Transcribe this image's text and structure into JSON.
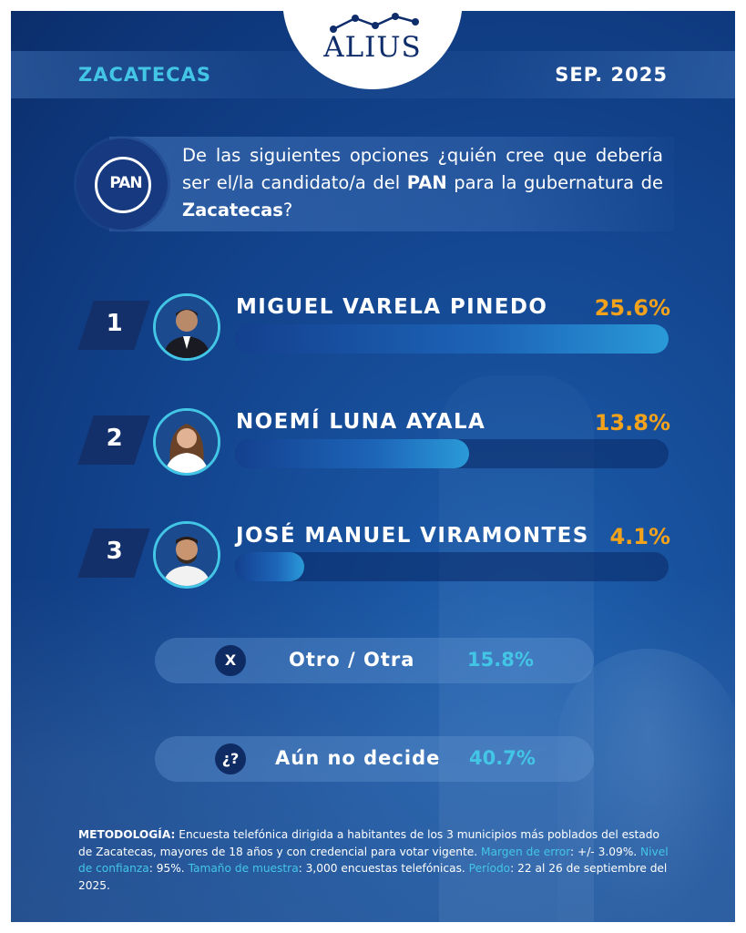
{
  "brand": {
    "name": "ALIUS"
  },
  "header": {
    "state": "ZACATECAS",
    "date": "SEP. 2025"
  },
  "party": {
    "logo_text": "PAN"
  },
  "question": {
    "part1": "De las siguientes opciones ",
    "part2": "¿quién cree que debería ser el/la candidato/a del ",
    "party": "PAN",
    "part3": " para la gubernatura de ",
    "place": "Zacatecas",
    "part4": "?"
  },
  "chart_data": {
    "type": "bar",
    "orientation": "horizontal",
    "categories": [
      "MIGUEL VARELA PINEDO",
      "NOEMÍ LUNA AYALA",
      "JOSÉ MANUEL VIRAMONTES"
    ],
    "ranks": [
      "1",
      "2",
      "3"
    ],
    "values": [
      25.6,
      13.8,
      4.1
    ],
    "labels": [
      "25.6%",
      "13.8%",
      "4.1%"
    ],
    "xlim": [
      0,
      25.6
    ],
    "others": [
      {
        "icon": "X",
        "label": "Otro / Otra",
        "value": 15.8,
        "value_label": "15.8%"
      },
      {
        "icon": "¿?",
        "label": "Aún no decide",
        "value": 40.7,
        "value_label": "40.7%"
      }
    ],
    "colors": {
      "percent": "#f3a21b",
      "accent": "#43c6e6",
      "bar": "#1d65b8"
    }
  },
  "methodology": {
    "label1": "METODOLOGÍA:",
    "text1": " Encuesta telefónica dirigida a habitantes de los 3 municipios más poblados del estado de Zacatecas, mayores de 18 años y con credencial para votar vigente. ",
    "label2": "Margen de error",
    "text2": ": +/- 3.09%. ",
    "label3": "Nivel de confianza",
    "text3": ": 95%. ",
    "label4": "Tamaño de muestra",
    "text4": ": 3,000 encuestas telefónicas. ",
    "label5": "Período",
    "text5": ": 22 al 26 de septiembre del 2025."
  }
}
